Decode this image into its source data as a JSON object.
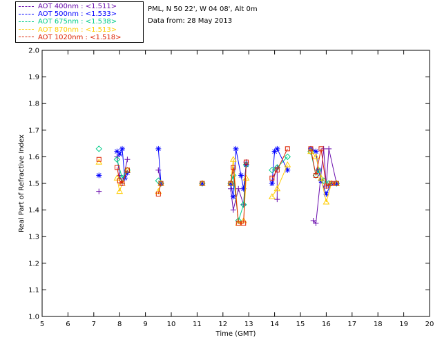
{
  "header": {
    "site": "PML, N 50 22', W 04 08', Alt 0m",
    "date": "Data from: 28 May 2013"
  },
  "chart_data": {
    "type": "scatter",
    "xlabel": "Time (GMT)",
    "ylabel": "Real Part of Refractive Index",
    "xlim": [
      5,
      20
    ],
    "ylim": [
      1.0,
      2.0
    ],
    "xticks": [
      "5",
      "6",
      "7",
      "8",
      "9",
      "10",
      "11",
      "12",
      "13",
      "14",
      "15",
      "16",
      "17",
      "18",
      "19",
      "20"
    ],
    "yticks": [
      "1.0",
      "1.1",
      "1.2",
      "1.3",
      "1.4",
      "1.5",
      "1.6",
      "1.7",
      "1.8",
      "1.9",
      "2.0"
    ],
    "legend_position": "top-left",
    "series": [
      {
        "name": "AOT  400nm : <1.511>",
        "color": "#6a0dad",
        "marker": "plus",
        "points": [
          [
            7.2,
            1.47
          ],
          [
            7.9,
            1.6
          ],
          [
            8.0,
            1.53
          ],
          [
            8.1,
            1.5
          ],
          [
            8.3,
            1.59
          ],
          [
            9.5,
            1.55
          ],
          [
            9.6,
            1.5
          ],
          [
            11.2,
            1.5
          ],
          [
            12.3,
            1.48
          ],
          [
            12.4,
            1.4
          ],
          [
            12.6,
            1.48
          ],
          [
            12.8,
            1.42
          ],
          [
            12.9,
            1.58
          ],
          [
            13.9,
            1.5
          ],
          [
            14.1,
            1.56
          ],
          [
            14.1,
            1.44
          ],
          [
            15.5,
            1.36
          ],
          [
            15.6,
            1.35
          ],
          [
            15.9,
            1.63
          ],
          [
            16.0,
            1.49
          ],
          [
            16.1,
            1.63
          ],
          [
            16.4,
            1.5
          ]
        ]
      },
      {
        "name": "AOT  500nm : <1.533>",
        "color": "#0000ff",
        "marker": "star",
        "points": [
          [
            7.2,
            1.53
          ],
          [
            7.9,
            1.62
          ],
          [
            8.0,
            1.61
          ],
          [
            8.1,
            1.63
          ],
          [
            8.2,
            1.52
          ],
          [
            8.3,
            1.54
          ],
          [
            9.5,
            1.63
          ],
          [
            9.6,
            1.5
          ],
          [
            11.2,
            1.5
          ],
          [
            12.3,
            1.5
          ],
          [
            12.4,
            1.45
          ],
          [
            12.5,
            1.63
          ],
          [
            12.7,
            1.53
          ],
          [
            12.8,
            1.48
          ],
          [
            12.9,
            1.57
          ],
          [
            13.9,
            1.5
          ],
          [
            14.0,
            1.62
          ],
          [
            14.1,
            1.63
          ],
          [
            14.5,
            1.55
          ],
          [
            15.4,
            1.63
          ],
          [
            15.6,
            1.62
          ],
          [
            15.7,
            1.55
          ],
          [
            15.8,
            1.51
          ],
          [
            16.0,
            1.46
          ],
          [
            16.2,
            1.5
          ],
          [
            16.4,
            1.5
          ]
        ]
      },
      {
        "name": "AOT  675nm : <1.538>",
        "color": "#00cc88",
        "marker": "diamond",
        "points": [
          [
            7.2,
            1.63
          ],
          [
            7.9,
            1.59
          ],
          [
            8.1,
            1.52
          ],
          [
            8.3,
            1.55
          ],
          [
            9.5,
            1.51
          ],
          [
            9.6,
            1.5
          ],
          [
            11.2,
            1.5
          ],
          [
            12.3,
            1.5
          ],
          [
            12.4,
            1.53
          ],
          [
            12.6,
            1.36
          ],
          [
            12.8,
            1.42
          ],
          [
            12.9,
            1.57
          ],
          [
            13.9,
            1.55
          ],
          [
            14.1,
            1.56
          ],
          [
            14.5,
            1.6
          ],
          [
            15.4,
            1.62
          ],
          [
            15.6,
            1.53
          ],
          [
            15.7,
            1.55
          ],
          [
            15.9,
            1.51
          ],
          [
            16.1,
            1.5
          ],
          [
            16.4,
            1.5
          ]
        ]
      },
      {
        "name": "AOT  870nm : <1.513>",
        "color": "#ffcc00",
        "marker": "triangle",
        "points": [
          [
            7.2,
            1.58
          ],
          [
            7.9,
            1.52
          ],
          [
            8.0,
            1.47
          ],
          [
            8.1,
            1.5
          ],
          [
            8.3,
            1.55
          ],
          [
            9.5,
            1.47
          ],
          [
            9.6,
            1.5
          ],
          [
            11.2,
            1.5
          ],
          [
            12.3,
            1.5
          ],
          [
            12.4,
            1.59
          ],
          [
            12.6,
            1.35
          ],
          [
            12.8,
            1.36
          ],
          [
            12.9,
            1.52
          ],
          [
            13.9,
            1.45
          ],
          [
            14.1,
            1.48
          ],
          [
            14.5,
            1.57
          ],
          [
            15.4,
            1.62
          ],
          [
            15.6,
            1.6
          ],
          [
            15.8,
            1.52
          ],
          [
            16.0,
            1.43
          ],
          [
            16.2,
            1.5
          ],
          [
            16.4,
            1.5
          ]
        ]
      },
      {
        "name": "AOT 1020nm : <1.518>",
        "color": "#dd2200",
        "marker": "square",
        "points": [
          [
            7.2,
            1.59
          ],
          [
            7.9,
            1.56
          ],
          [
            8.0,
            1.51
          ],
          [
            8.1,
            1.5
          ],
          [
            8.3,
            1.55
          ],
          [
            9.5,
            1.46
          ],
          [
            9.6,
            1.5
          ],
          [
            11.2,
            1.5
          ],
          [
            12.3,
            1.5
          ],
          [
            12.4,
            1.56
          ],
          [
            12.6,
            1.35
          ],
          [
            12.8,
            1.35
          ],
          [
            12.9,
            1.58
          ],
          [
            13.9,
            1.52
          ],
          [
            14.1,
            1.55
          ],
          [
            14.5,
            1.63
          ],
          [
            15.4,
            1.63
          ],
          [
            15.6,
            1.53
          ],
          [
            15.8,
            1.63
          ],
          [
            16.0,
            1.49
          ],
          [
            16.2,
            1.5
          ],
          [
            16.4,
            1.5
          ]
        ]
      }
    ]
  }
}
